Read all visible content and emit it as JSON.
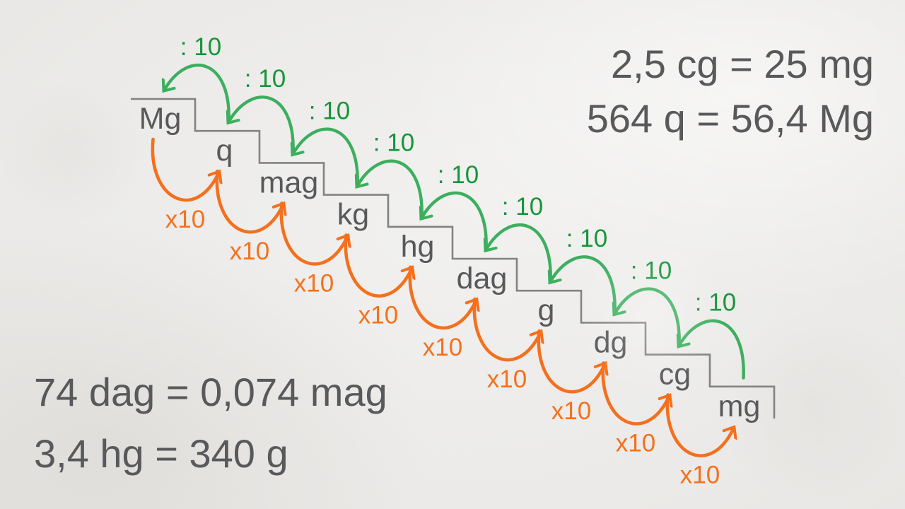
{
  "slide": {
    "background_color": "#ecebe9"
  },
  "colors": {
    "divide_text": "#149639",
    "divide_arrow": "#3caf5f",
    "multiply_text": "#f4711d",
    "multiply_arrow": "#f4701d",
    "unit_text": "#58595b",
    "stair_line": "#828282",
    "example_text": "#58595b"
  },
  "staircase": {
    "units": [
      "Mg",
      "q",
      "mag",
      "kg",
      "hg",
      "dag",
      "g",
      "dg",
      "cg",
      "mg"
    ],
    "divide_label": ": 10",
    "multiply_label": "x10"
  },
  "examples": {
    "top_right_lines": [
      "2,5 cg = 25 mg",
      "564 q = 56,4 Mg"
    ],
    "bottom_left_lines": [
      "74 dag = 0,074 mag",
      "3,4 hg = 340 g"
    ]
  }
}
